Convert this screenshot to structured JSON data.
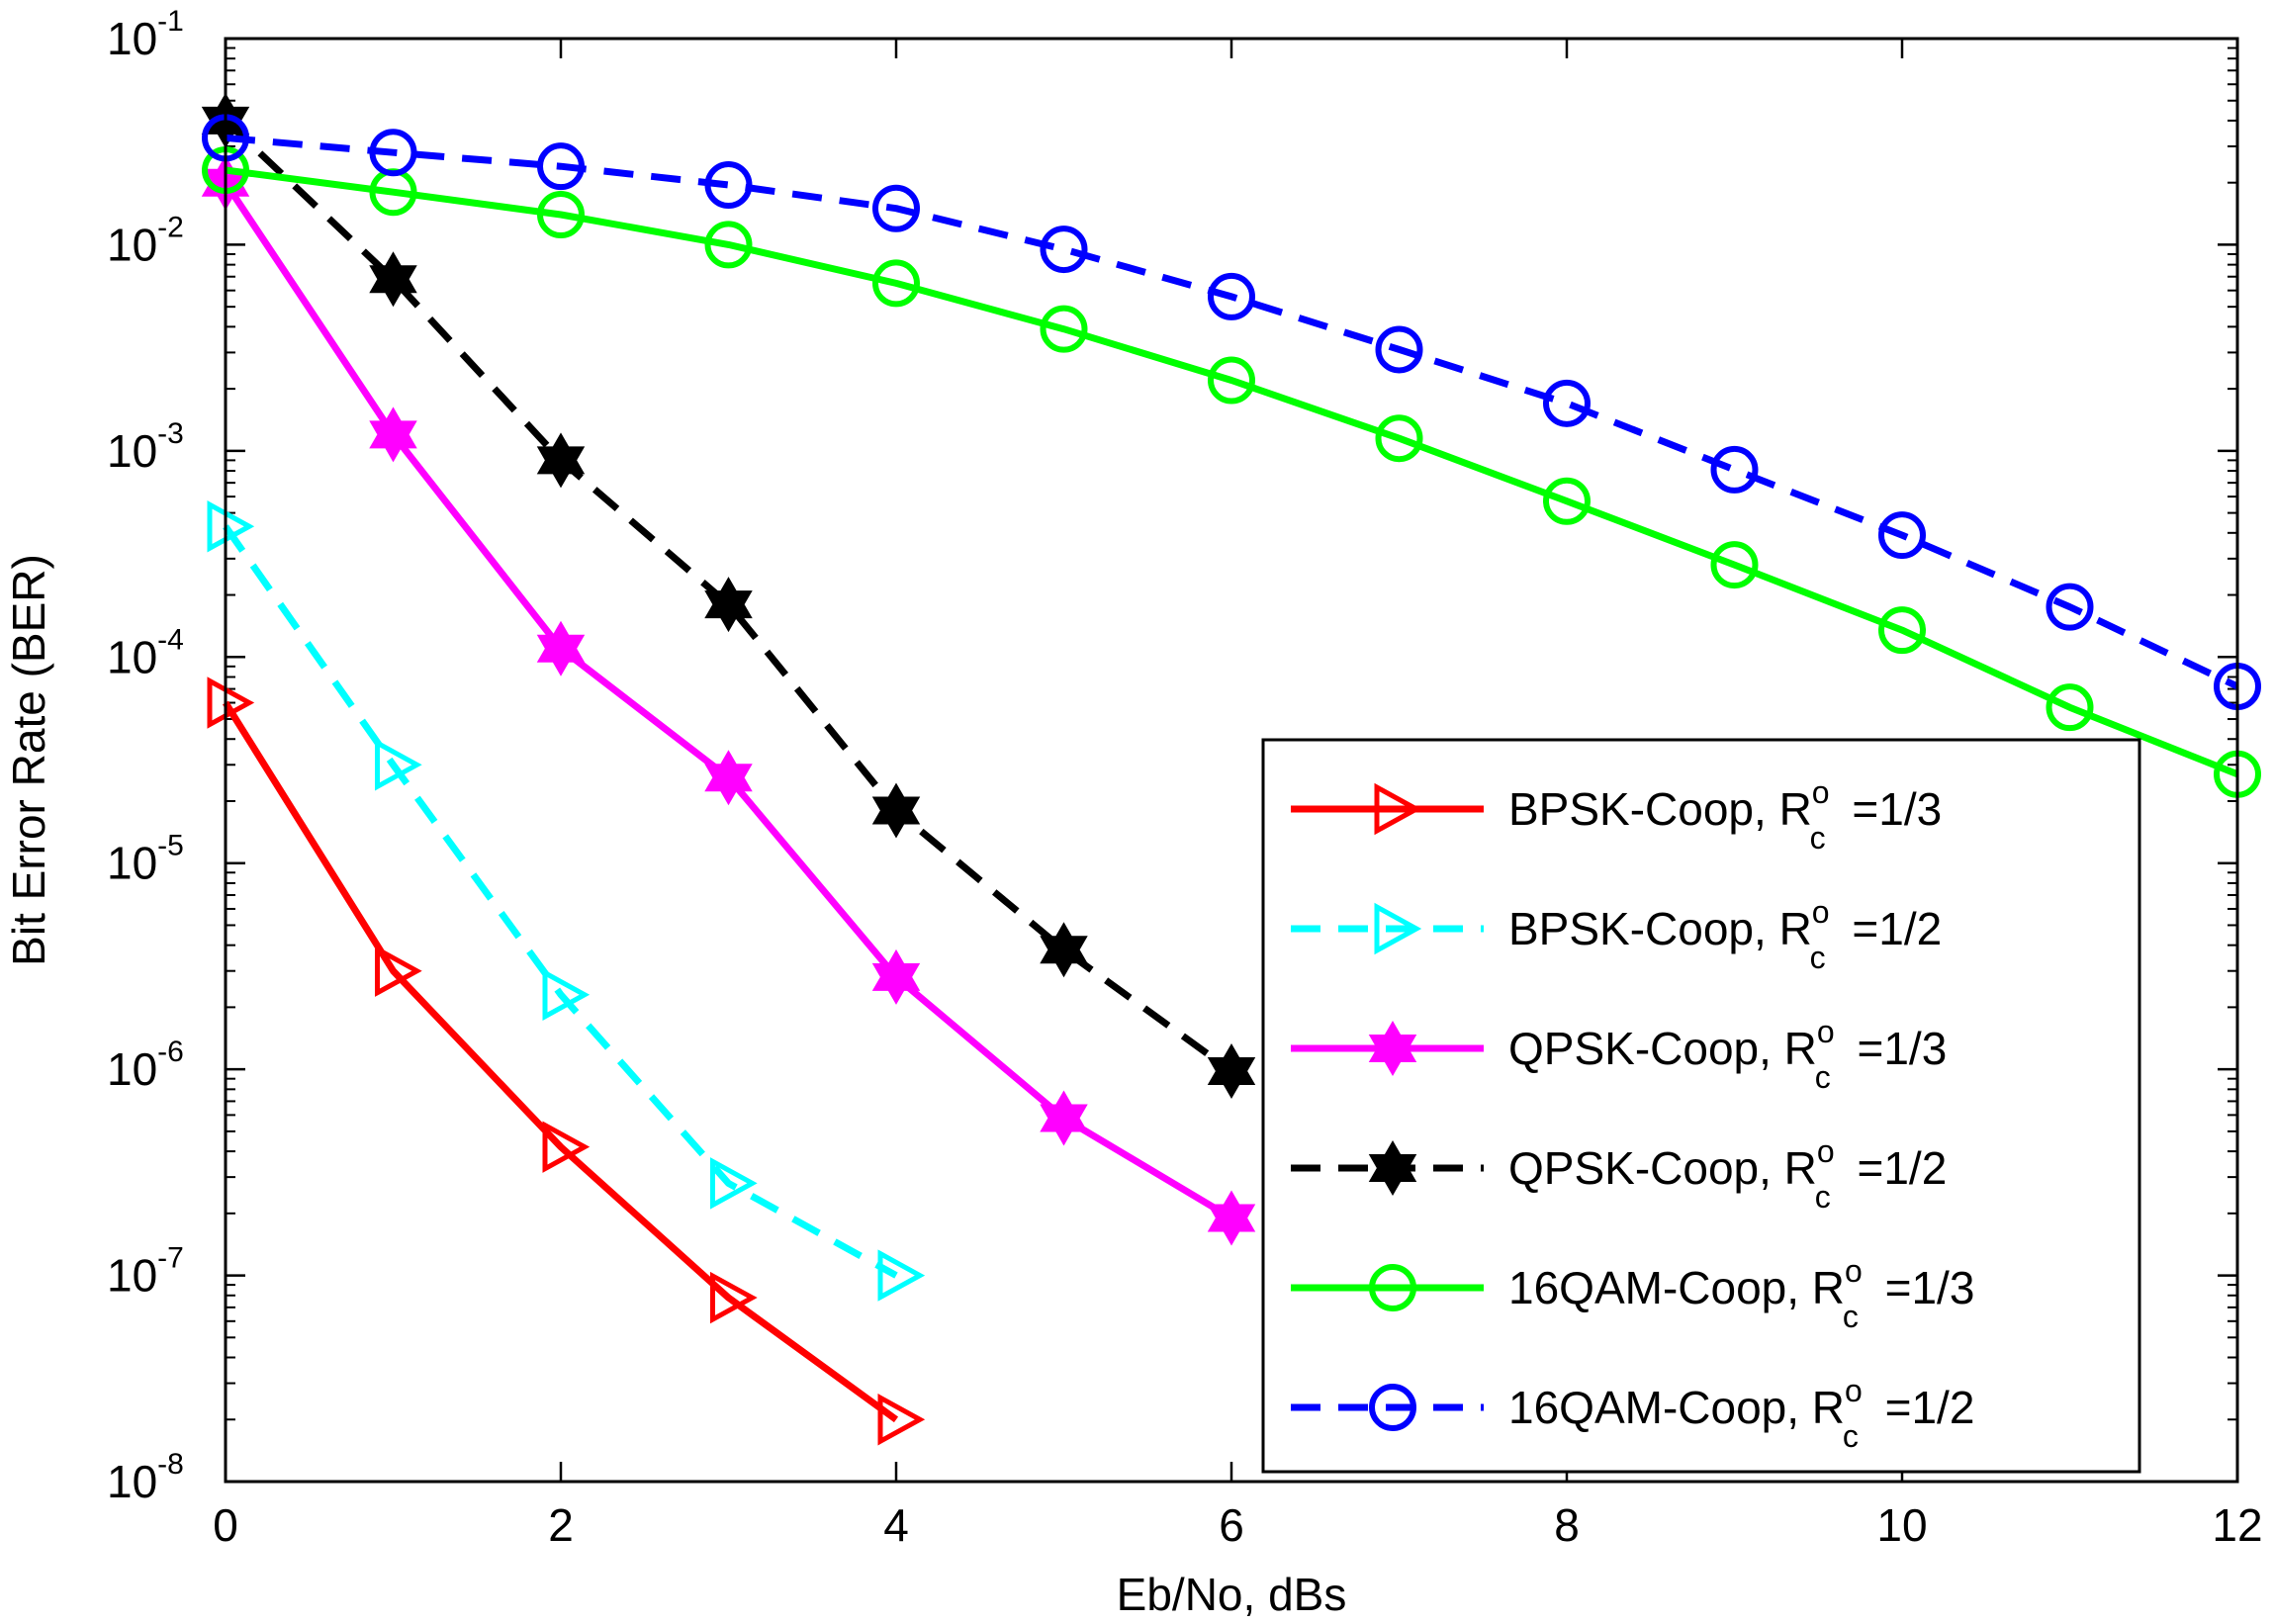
{
  "chart_data": {
    "type": "line",
    "xlabel": "Eb/No, dBs",
    "ylabel": "Bit Error Rate (BER)",
    "xlim": [
      0,
      12
    ],
    "ylim": [
      1e-08,
      0.1
    ],
    "yscale": "log",
    "xticks": [
      "0",
      "2",
      "4",
      "6",
      "8",
      "10",
      "12"
    ],
    "yticks": [
      {
        "base": "10",
        "exp": "-1"
      },
      {
        "base": "10",
        "exp": "-2"
      },
      {
        "base": "10",
        "exp": "-3"
      },
      {
        "base": "10",
        "exp": "-4"
      },
      {
        "base": "10",
        "exp": "-5"
      },
      {
        "base": "10",
        "exp": "-6"
      },
      {
        "base": "10",
        "exp": "-7"
      },
      {
        "base": "10",
        "exp": "-8"
      }
    ],
    "legend_position": "bottom-right",
    "series": [
      {
        "name": "BPSK-Coop, R_c^o =1/3",
        "label_main": "BPSK-Coop, R",
        "label_sup": "o",
        "label_sub": "c",
        "label_tail": "=1/3",
        "color": "#ff0000",
        "dash": "solid",
        "marker": "triangle-right",
        "x": [
          0,
          1,
          2,
          3,
          4
        ],
        "y": [
          6e-05,
          3e-06,
          4.2e-07,
          7.8e-08,
          2e-08
        ]
      },
      {
        "name": "BPSK-Coop, R_c^o =1/2",
        "label_main": "BPSK-Coop, R",
        "label_sup": "o",
        "label_sub": "c",
        "label_tail": "=1/2",
        "color": "#00ffff",
        "dash": "dashed",
        "marker": "triangle-right",
        "x": [
          0,
          1,
          2,
          3,
          4
        ],
        "y": [
          0.00043,
          3e-05,
          2.3e-06,
          2.8e-07,
          1e-07
        ]
      },
      {
        "name": "QPSK-Coop, R_c^o =1/3",
        "label_main": "QPSK-Coop, R",
        "label_sup": "o",
        "label_sub": "c",
        "label_tail": "=1/3",
        "color": "#ff00ff",
        "dash": "solid",
        "marker": "hexagram",
        "x": [
          0,
          1,
          2,
          3,
          4,
          5,
          6
        ],
        "y": [
          0.02,
          0.0012,
          0.00011,
          2.6e-05,
          2.8e-06,
          5.8e-07,
          1.9e-07
        ]
      },
      {
        "name": "QPSK-Coop, R_c^o =1/2",
        "label_main": "QPSK-Coop, R",
        "label_sup": "o",
        "label_sub": "c",
        "label_tail": "=1/2",
        "color": "#000000",
        "dash": "dashed",
        "marker": "hexagram",
        "x": [
          0,
          1,
          2,
          3,
          4,
          5,
          6
        ],
        "y": [
          0.04,
          0.0068,
          0.0009,
          0.00018,
          1.8e-05,
          3.8e-06,
          9.8e-07
        ]
      },
      {
        "name": "16QAM-Coop, R_c^o =1/3",
        "label_main": "16QAM-Coop, R",
        "label_sup": "o",
        "label_sub": "c",
        "label_tail": "=1/3",
        "color": "#00ff00",
        "dash": "solid",
        "marker": "circle",
        "x": [
          0,
          1,
          2,
          3,
          4,
          5,
          6,
          7,
          8,
          9,
          10,
          11,
          12
        ],
        "y": [
          0.023,
          0.018,
          0.014,
          0.01,
          0.0065,
          0.0039,
          0.0022,
          0.00115,
          0.00057,
          0.00028,
          0.000135,
          5.7e-05,
          2.7e-05
        ]
      },
      {
        "name": "16QAM-Coop, R_c^o =1/2",
        "label_main": "16QAM-Coop, R",
        "label_sup": "o",
        "label_sub": "c",
        "label_tail": "=1/2",
        "color": "#0000ff",
        "dash": "dashed",
        "marker": "circle",
        "x": [
          0,
          1,
          2,
          3,
          4,
          5,
          6,
          7,
          8,
          9,
          10,
          11,
          12
        ],
        "y": [
          0.033,
          0.028,
          0.024,
          0.0195,
          0.015,
          0.0095,
          0.0056,
          0.0031,
          0.0017,
          0.00081,
          0.00039,
          0.000175,
          7.2e-05
        ]
      }
    ]
  }
}
